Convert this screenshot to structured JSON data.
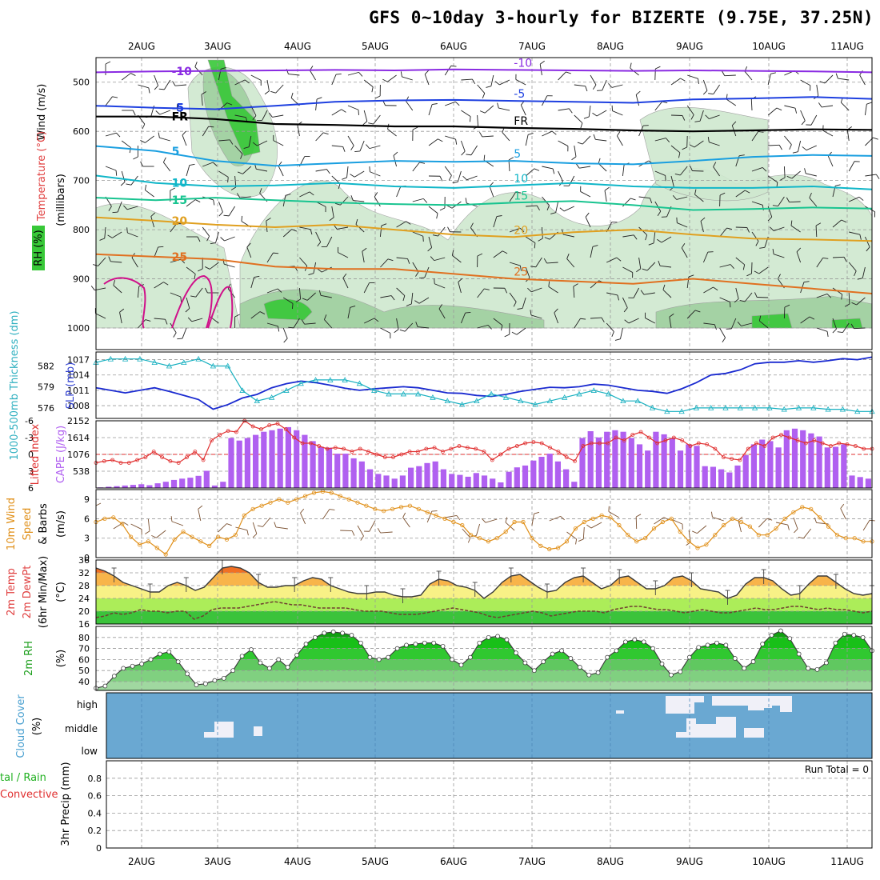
{
  "title": "GFS 0~10day 3-hourly for BIZERTE (9.75E, 37.25N)",
  "chart_data": [
    {
      "panel": "pressure-cross-section",
      "type": "contour",
      "dates": [
        "2AUG",
        "3AUG",
        "4AUG",
        "5AUG",
        "6AUG",
        "7AUG",
        "8AUG",
        "9AUG",
        "10AUG",
        "11AUG"
      ],
      "ylabel": "(millibars)",
      "ylabel_parts": [
        "Wind (m/s)",
        "Temperature (°C)",
        "RH (%)"
      ],
      "yticks": [
        "500",
        "600",
        "700",
        "800",
        "900",
        "1000"
      ],
      "ylim": [
        450,
        1000
      ],
      "freezing_label": "FR",
      "isotherms": [
        {
          "label": "-10",
          "color": "#8a2be2",
          "values": [
            480,
            478,
            477,
            476,
            475,
            476,
            474,
            475,
            476,
            477,
            476,
            477,
            478,
            480
          ]
        },
        {
          "label": "-5",
          "color": "#1e40e0",
          "values": [
            548,
            552,
            555,
            548,
            540,
            537,
            536,
            538,
            540,
            542,
            535,
            533,
            530,
            534
          ]
        },
        {
          "label": "FR",
          "color": "#000000",
          "values": [
            570,
            570,
            575,
            585,
            587,
            590,
            590,
            593,
            595,
            598,
            600,
            598,
            596,
            597
          ]
        },
        {
          "label": "5",
          "color": "#1a9fe0",
          "values": [
            630,
            640,
            660,
            670,
            665,
            660,
            662,
            660,
            665,
            667,
            660,
            652,
            648,
            650
          ]
        },
        {
          "label": "10",
          "color": "#10b6c8",
          "values": [
            690,
            705,
            712,
            710,
            705,
            712,
            715,
            710,
            705,
            712,
            715,
            715,
            712,
            718
          ]
        },
        {
          "label": "15",
          "color": "#19c490",
          "values": [
            735,
            740,
            735,
            740,
            745,
            748,
            750,
            745,
            742,
            750,
            760,
            758,
            755,
            757
          ]
        },
        {
          "label": "20",
          "color": "#e0a020",
          "values": [
            775,
            782,
            790,
            795,
            790,
            800,
            810,
            815,
            805,
            800,
            810,
            818,
            820,
            823
          ]
        },
        {
          "label": "25",
          "color": "#e07020",
          "values": [
            850,
            855,
            860,
            875,
            880,
            880,
            890,
            900,
            905,
            910,
            900,
            910,
            920,
            930
          ]
        }
      ]
    },
    {
      "panel": "thickness-slp",
      "type": "line",
      "ylabel_left": "1000-500mb Thickness (dm)",
      "ylabel_right": "SLP (mb)",
      "yticks_left": [
        "582",
        "579",
        "576"
      ],
      "yticks_right": [
        "1017",
        "1014",
        "1011",
        "1008"
      ],
      "series": [
        {
          "name": "SLP (mb)",
          "color": "#1a2ad0",
          "values": [
            1011.5,
            1011,
            1010.5,
            1011,
            1011.5,
            1010.8,
            1010,
            1009.2,
            1007.3,
            1008.2,
            1009.5,
            1010.2,
            1011.5,
            1012.3,
            1012.8,
            1012.5,
            1012,
            1011.4,
            1011,
            1011.3,
            1011.5,
            1011.7,
            1011.5,
            1011,
            1010.5,
            1010.4,
            1010,
            1009.8,
            1010.2,
            1010.8,
            1011.2,
            1011.6,
            1011.5,
            1011.7,
            1012.2,
            1012,
            1011.5,
            1011,
            1010.8,
            1010.4,
            1011.3,
            1012.5,
            1014,
            1014.3,
            1015,
            1016.2,
            1016.5,
            1016.5,
            1016.8,
            1016.5,
            1016.8,
            1017.2,
            1017,
            1017.5
          ]
        },
        {
          "name": "Thickness (dm)",
          "color": "#18b0c0",
          "values": [
            582.5,
            583,
            583,
            583,
            582.5,
            582,
            582.5,
            583,
            582,
            582,
            578.5,
            577,
            577.5,
            578.5,
            579.5,
            580,
            580,
            580,
            579.5,
            578.5,
            578,
            578,
            578,
            577.5,
            577,
            576.5,
            577,
            578,
            577.5,
            577,
            576.5,
            577,
            577.5,
            578,
            578.5,
            578,
            577,
            577,
            576,
            575.5,
            575.5,
            576,
            576,
            576,
            576,
            576,
            576,
            575.8,
            576,
            576,
            575.8,
            575.8,
            575.5,
            575.5
          ]
        }
      ]
    },
    {
      "panel": "lifted-index-cape",
      "type": "bar+line",
      "ylabel_left": "Lifted Index",
      "ylabel_right": "CAPE (J/kg)",
      "yticks_left": [
        "-6",
        "-3",
        "0",
        "3",
        "6"
      ],
      "yticks_right": [
        "2152",
        "1614",
        "1076",
        "538"
      ],
      "series": [
        {
          "name": "CAPE",
          "color": "#b060f0",
          "values": [
            20,
            40,
            60,
            80,
            100,
            120,
            90,
            150,
            200,
            260,
            300,
            330,
            390,
            550,
            80,
            200,
            1600,
            1520,
            1600,
            1700,
            1800,
            1850,
            1900,
            1950,
            1850,
            1700,
            1500,
            1320,
            1290,
            1100,
            1100,
            950,
            850,
            600,
            450,
            400,
            300,
            400,
            650,
            700,
            800,
            850,
            600,
            450,
            420,
            360,
            480,
            400,
            300,
            180,
            520,
            660,
            720,
            880,
            1000,
            1100,
            850,
            600,
            200,
            1600,
            1820,
            1620,
            1800,
            1850,
            1800,
            1600,
            1400,
            1200,
            1800,
            1720,
            1600,
            1200,
            1400,
            1350,
            700,
            680,
            600,
            500,
            720,
            1050,
            1400,
            1550,
            1500,
            1300,
            1850,
            1900,
            1850,
            1750,
            1650,
            1300,
            1320,
            1400,
            400,
            350,
            300
          ]
        },
        {
          "name": "Lifted Index",
          "color": "#e03030",
          "values": [
            1.5,
            1.2,
            1.0,
            1.5,
            1.5,
            1.0,
            0.5,
            -0.5,
            0.5,
            1.2,
            1.5,
            0.5,
            -0.5,
            1.0,
            -2.5,
            -3.5,
            -4.2,
            -4.0,
            -6,
            -5.0,
            -4.5,
            -5.2,
            -5.5,
            -4.5,
            -3.0,
            -2.0,
            -2.0,
            -1.5,
            -1.0,
            -1.2,
            -1.0,
            -0.5,
            -1.0,
            -0.5,
            0.0,
            0.5,
            0.5,
            0.0,
            -0.5,
            -0.5,
            -1.0,
            -1.2,
            -0.5,
            -1.0,
            -1.5,
            -1.2,
            -1.0,
            -0.5,
            1.0,
            0.0,
            -1.0,
            -1.5,
            -2.0,
            -2.2,
            -2.0,
            -1.2,
            -0.5,
            0.5,
            1.2,
            -1.5,
            -2.0,
            -2.0,
            -2.0,
            -3.0,
            -2.5,
            -3.5,
            -4.0,
            -3.0,
            -2.0,
            -2.5,
            -3.0,
            -2.5,
            -1.5,
            -2.0,
            -1.8,
            -1.0,
            0.5,
            0.8,
            1.0,
            -1.0,
            -2.0,
            -1.5,
            -3.0,
            -3.5,
            -3.0,
            -2.5,
            -2.0,
            -2.5,
            -2.0,
            -1.5,
            -2.0,
            -1.8,
            -1.5,
            -1.0,
            -1.0
          ]
        }
      ]
    },
    {
      "panel": "10m-wind",
      "type": "line",
      "ylabel": "10m Wind Speed & Barbs (m/s)",
      "ylabel_parts": [
        "10m Wind",
        "Speed",
        "& Barbs",
        "(m/s)"
      ],
      "yticks": [
        "9",
        "6",
        "3",
        "0"
      ],
      "ylim": [
        0,
        10.5
      ],
      "series": [
        {
          "name": "Speed",
          "color": "#e0901a",
          "values": [
            5.5,
            6.0,
            6.2,
            5.2,
            3.2,
            2.0,
            2.5,
            1.5,
            0.5,
            2.8,
            4.0,
            3.2,
            2.5,
            1.8,
            3.2,
            2.8,
            3.5,
            6.5,
            7.5,
            8.0,
            8.5,
            9.0,
            8.5,
            9.0,
            9.5,
            10.0,
            10.2,
            10.0,
            9.5,
            9.0,
            8.5,
            8.0,
            7.5,
            7.2,
            7.5,
            7.8,
            8.0,
            7.5,
            7.0,
            6.5,
            6.0,
            5.5,
            5.0,
            3.5,
            3.0,
            2.5,
            3.0,
            4.0,
            5.5,
            5.5,
            3.0,
            1.8,
            1.3,
            1.5,
            2.5,
            4.5,
            5.5,
            6.0,
            6.5,
            6.2,
            5.0,
            3.5,
            2.5,
            3.0,
            4.5,
            5.5,
            6.0,
            4.0,
            2.5,
            1.5,
            2.0,
            3.5,
            5.0,
            6.0,
            5.5,
            4.8,
            3.5,
            3.5,
            4.5,
            6.0,
            7.0,
            7.8,
            7.5,
            6.2,
            4.8,
            3.5,
            3.0,
            3.0,
            2.5,
            2.5
          ]
        }
      ]
    },
    {
      "panel": "2m-temperature",
      "type": "area",
      "ylabel": "2m Temp 2m DewPt (6hr Min/Max) (°C)",
      "ylabel_parts": [
        "2m Temp",
        "2m DewPt",
        "(6hr Min/Max)",
        "(°C)"
      ],
      "yticks": [
        "36",
        "32",
        "28",
        "24",
        "20",
        "16"
      ],
      "ylim": [
        16,
        36
      ],
      "series": [
        {
          "name": "2m Temp",
          "color": "#3a3a3a",
          "values": [
            33.5,
            32.5,
            31.0,
            29.0,
            28.0,
            27.0,
            26.0,
            26.0,
            28.0,
            29.0,
            28.0,
            26.5,
            27.5,
            30.5,
            33.5,
            34.0,
            33.5,
            32.0,
            29.0,
            27.5,
            27.5,
            28.0,
            28.0,
            29.5,
            30.5,
            30.0,
            28.0,
            27.0,
            26.0,
            25.5,
            25.5,
            26.0,
            26.0,
            25.0,
            24.5,
            24.5,
            25.0,
            28.5,
            30.0,
            29.5,
            28.0,
            27.5,
            26.5,
            24.0,
            26.0,
            29.0,
            31.0,
            31.5,
            29.5,
            27.5,
            26.0,
            26.5,
            29.0,
            30.5,
            31.0,
            29.0,
            27.0,
            28.0,
            30.5,
            31.0,
            29.0,
            27.0,
            27.0,
            28.0,
            30.5,
            31.0,
            29.5,
            27.0,
            26.5,
            26.0,
            24.0,
            25.0,
            28.5,
            30.5,
            30.5,
            29.5,
            27.0,
            25.0,
            25.5,
            28.5,
            31.0,
            31.0,
            29.0,
            27.0,
            25.5,
            25.0,
            25.5
          ]
        },
        {
          "name": "2m DewPt",
          "color": "#704030",
          "values": [
            18.0,
            18.5,
            19.5,
            19.0,
            19.5,
            20.5,
            20.0,
            20.0,
            19.5,
            20.0,
            20.0,
            17.5,
            18.5,
            20.5,
            21.0,
            21.0,
            21.0,
            21.5,
            22.0,
            22.5,
            23.0,
            22.5,
            22.0,
            22.0,
            21.5,
            21.0,
            21.0,
            21.0,
            21.0,
            20.5,
            20.0,
            20.0,
            20.0,
            19.5,
            19.0,
            19.0,
            19.0,
            19.5,
            20.0,
            20.5,
            21.0,
            20.5,
            20.0,
            19.5,
            18.5,
            18.0,
            18.5,
            19.0,
            19.5,
            20.0,
            19.5,
            18.5,
            19.0,
            19.5,
            20.0,
            20.0,
            20.0,
            19.5,
            20.5,
            21.0,
            21.5,
            21.5,
            21.0,
            20.5,
            20.5,
            20.0,
            19.5,
            20.0,
            20.5,
            20.0,
            19.5,
            19.5,
            20.0,
            20.5,
            21.0,
            20.5,
            20.5,
            21.0,
            21.5,
            21.5,
            21.0,
            20.5,
            21.0,
            20.5,
            20.5,
            20.0,
            19.5,
            20.0
          ]
        }
      ]
    },
    {
      "panel": "2m-rh",
      "type": "area",
      "ylabel": "2m RH (%)",
      "ylabel_parts": [
        "2m RH",
        "(%)"
      ],
      "yticks": [
        "80",
        "70",
        "60",
        "50",
        "40"
      ],
      "ylim": [
        32,
        90
      ],
      "series": [
        {
          "name": "2m RH",
          "color": "#40a040",
          "values": [
            34,
            36,
            45,
            52,
            54,
            56,
            60,
            65,
            67,
            58,
            47,
            37,
            38,
            41,
            43,
            50,
            63,
            69,
            57,
            52,
            60,
            53,
            64,
            74,
            80,
            84,
            85,
            84,
            82,
            75,
            62,
            60,
            62,
            70,
            73,
            74,
            75,
            75,
            72,
            60,
            55,
            62,
            75,
            80,
            81,
            78,
            66,
            57,
            50,
            58,
            65,
            68,
            61,
            53,
            46,
            48,
            62,
            68,
            76,
            78,
            76,
            70,
            56,
            46,
            49,
            62,
            71,
            73,
            75,
            73,
            61,
            52,
            58,
            74,
            82,
            86,
            79,
            65,
            52,
            51,
            57,
            75,
            83,
            82,
            80,
            68
          ]
        }
      ]
    },
    {
      "panel": "cloud-cover",
      "type": "heatmap",
      "ylabel": "Cloud Cover (%)",
      "ylabel_parts": [
        "Cloud Cover",
        "(%)"
      ],
      "levels": [
        "high",
        "middle",
        "low"
      ]
    },
    {
      "panel": "precipitation",
      "type": "bar",
      "ylabel": "3hr Precip (mm)",
      "ylabel_parts": [
        "3hr Precip (mm)",
        "tal / Rain",
        "Convective"
      ],
      "yticks": [
        "0.8",
        "0.6",
        "0.4",
        "0.2",
        "0"
      ],
      "ylim": [
        0,
        1
      ],
      "run_total": "Run Total = 0",
      "values": []
    }
  ],
  "colors": {
    "rh_shade": "#cfe8cf",
    "rh_dark": "#9fd09f",
    "rh_bright": "#38c838",
    "cape": "#b060f0",
    "lifted_index": "#e03030",
    "wind_speed": "#e0901a",
    "cloud_blue": "#6aa8d2",
    "cloud_white": "#f0f0f8",
    "temp_fill": "#f08a20"
  }
}
